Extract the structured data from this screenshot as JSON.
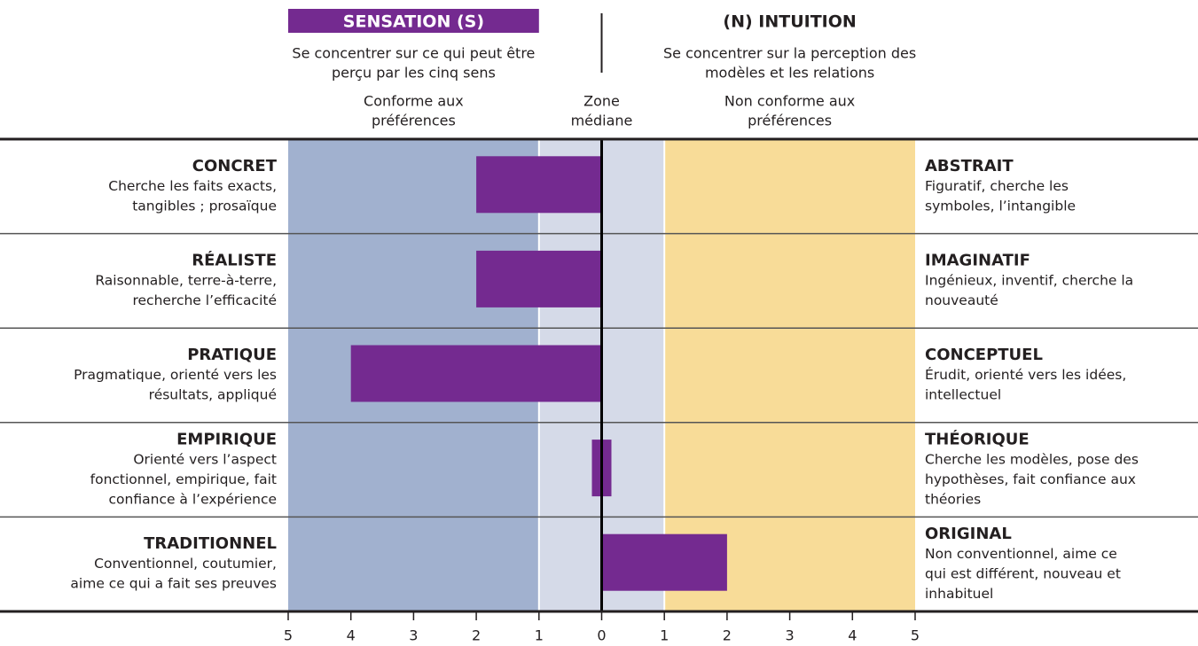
{
  "chart_data": {
    "type": "bar",
    "orientation": "horizontal",
    "color": "#742a90",
    "left_heading": {
      "title": "SENSATION (S)",
      "subtitle": [
        "Se concentrer sur ce qui peut être",
        "perçu par les cinq sens"
      ]
    },
    "right_heading": {
      "title": "(N) INTUITION",
      "subtitle": [
        "Se concentrer sur la perception des",
        "modèles et les relations"
      ]
    },
    "zones": [
      {
        "label": [
          "Conforme aux",
          "préférences"
        ],
        "range": [
          -5,
          -1
        ],
        "color": "#a1b1cf"
      },
      {
        "label": [
          "Zone",
          "médiane"
        ],
        "range": [
          -1,
          1
        ],
        "color": "#d5dae8"
      },
      {
        "label": [
          "Non conforme aux",
          "préférences"
        ],
        "range": [
          1,
          5
        ],
        "color": "#f8dc98"
      }
    ],
    "rows": [
      {
        "left_title": "CONCRET",
        "left_desc": [
          "Cherche les faits exacts,",
          "tangibles ; prosaïque"
        ],
        "right_title": "ABSTRAIT",
        "right_desc": [
          "Figuratif, cherche les",
          "symboles, l’intangible"
        ]
      },
      {
        "left_title": "RÉALISTE",
        "left_desc": [
          "Raisonnable, terre-à-terre,",
          "recherche l’efficacité"
        ],
        "right_title": "IMAGINATIF",
        "right_desc": [
          "Ingénieux, inventif, cherche la",
          "nouveauté"
        ]
      },
      {
        "left_title": "PRATIQUE",
        "left_desc": [
          "Pragmatique, orienté vers les",
          "résultats, appliqué"
        ],
        "right_title": "CONCEPTUEL",
        "right_desc": [
          "Érudit, orienté vers les idées,",
          "intellectuel"
        ]
      },
      {
        "left_title": "EMPIRIQUE",
        "left_desc": [
          "Orienté vers l’aspect",
          "fonctionnel, empirique, fait",
          "confiance à l’expérience"
        ],
        "right_title": "THÉORIQUE",
        "right_desc": [
          "Cherche les modèles, pose des",
          "hypothèses, fait confiance aux",
          "théories"
        ]
      },
      {
        "left_title": "TRADITIONNEL",
        "left_desc": [
          "Conventionnel, coutumier,",
          "aime ce qui a fait ses preuves"
        ],
        "right_title": "ORIGINAL",
        "right_desc": [
          "Non conventionnel, aime ce",
          "qui est différent, nouveau et",
          "inhabituel"
        ]
      }
    ],
    "values": [
      -2,
      -2,
      -4,
      0,
      2
    ],
    "xlim": [
      -5,
      5
    ],
    "xticks": [
      {
        "value": -5,
        "label": "5"
      },
      {
        "value": -4,
        "label": "4"
      },
      {
        "value": -3,
        "label": "3"
      },
      {
        "value": -2,
        "label": "2"
      },
      {
        "value": -1,
        "label": "1"
      },
      0,
      1,
      2,
      3,
      4,
      5
    ]
  }
}
